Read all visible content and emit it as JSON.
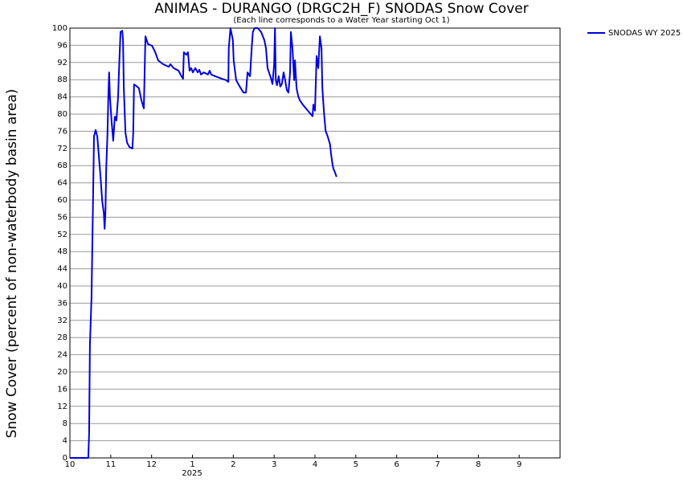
{
  "chart_data": {
    "type": "line",
    "title": "ANIMAS - DURANGO (DRGC2H_F) SNODAS Snow Cover",
    "subtitle": "(Each line corresponds to a Water Year starting Oct 1)",
    "y_label": "Snow Cover (percent of non-waterbody basin area)",
    "year_label": "2025",
    "xlim": [
      0,
      12
    ],
    "xticks": [
      {
        "value": 0,
        "label": "10"
      },
      {
        "value": 1,
        "label": "11"
      },
      {
        "value": 2,
        "label": "12"
      },
      {
        "value": 3,
        "label": "1"
      },
      {
        "value": 4,
        "label": "2"
      },
      {
        "value": 5,
        "label": "3"
      },
      {
        "value": 6,
        "label": "4"
      },
      {
        "value": 7,
        "label": "5"
      },
      {
        "value": 8,
        "label": "6"
      },
      {
        "value": 9,
        "label": "7"
      },
      {
        "value": 10,
        "label": "8"
      },
      {
        "value": 11,
        "label": "9"
      }
    ],
    "ylim": [
      0,
      100
    ],
    "yticks": [
      0,
      4,
      8,
      12,
      16,
      20,
      24,
      28,
      32,
      36,
      40,
      44,
      48,
      52,
      56,
      60,
      64,
      68,
      72,
      76,
      80,
      84,
      88,
      92,
      96,
      100
    ],
    "grid": true,
    "legend": "top-right",
    "series": [
      {
        "name": "SNODAS WY 2025",
        "color": "#0000dd",
        "x": [
          0,
          0.45,
          0.47,
          0.49,
          0.53,
          0.55,
          0.57,
          0.59,
          0.63,
          0.67,
          0.71,
          0.75,
          0.79,
          0.83,
          0.85,
          0.87,
          0.89,
          0.92,
          0.94,
          0.96,
          0.98,
          1.02,
          1.06,
          1.1,
          1.14,
          1.18,
          1.2,
          1.24,
          1.28,
          1.3,
          1.32,
          1.36,
          1.4,
          1.46,
          1.53,
          1.55,
          1.57,
          1.63,
          1.69,
          1.75,
          1.81,
          1.85,
          1.91,
          2.01,
          2.09,
          2.16,
          2.28,
          2.42,
          2.46,
          2.54,
          2.66,
          2.73,
          2.77,
          2.79,
          2.85,
          2.89,
          2.93,
          2.97,
          3.01,
          3.07,
          3.13,
          3.17,
          3.21,
          3.28,
          3.38,
          3.42,
          3.46,
          3.56,
          3.72,
          3.82,
          3.88,
          3.89,
          3.93,
          3.99,
          4.01,
          4.07,
          4.15,
          4.25,
          4.31,
          4.35,
          4.41,
          4.45,
          4.48,
          4.52,
          4.6,
          4.68,
          4.76,
          4.8,
          4.84,
          4.92,
          4.96,
          5.0,
          5.02,
          5.04,
          5.07,
          5.11,
          5.15,
          5.19,
          5.23,
          5.27,
          5.31,
          5.35,
          5.39,
          5.41,
          5.45,
          5.49,
          5.51,
          5.55,
          5.59,
          5.63,
          5.7,
          5.78,
          5.86,
          5.94,
          5.96,
          6.0,
          6.04,
          6.08,
          6.12,
          6.16,
          6.18,
          6.22,
          6.26,
          6.31,
          6.37,
          6.39,
          6.43,
          6.45,
          6.49,
          6.53
        ],
        "values": [
          0,
          0,
          5.6,
          26.2,
          37.4,
          50.5,
          62.6,
          74.8,
          76.3,
          74.8,
          70.1,
          65.4,
          59.8,
          57.0,
          53.3,
          57.0,
          67.3,
          75.7,
          84.1,
          89.7,
          84.1,
          78.5,
          73.8,
          79.4,
          78.5,
          84.1,
          89.7,
          99.1,
          99.4,
          97.2,
          86.0,
          75.7,
          73.3,
          72.3,
          72.0,
          75.7,
          86.9,
          86.5,
          86.0,
          83.2,
          81.3,
          98.1,
          96.3,
          95.9,
          94.4,
          92.5,
          91.6,
          91.0,
          91.6,
          90.7,
          90.1,
          88.8,
          88.2,
          94.4,
          93.8,
          94.4,
          90.1,
          90.7,
          89.7,
          90.7,
          89.7,
          90.3,
          89.2,
          89.7,
          89.2,
          90.1,
          89.2,
          88.8,
          88.2,
          87.9,
          87.5,
          95.3,
          100,
          97.2,
          92.5,
          87.9,
          86.5,
          85.0,
          85.0,
          89.7,
          88.8,
          95.3,
          99.1,
          100,
          100,
          99.1,
          97.2,
          95.3,
          90.7,
          88.4,
          87.0,
          91.6,
          100,
          87.9,
          86.7,
          88.8,
          86.4,
          87.0,
          89.7,
          87.9,
          85.6,
          85.0,
          89.7,
          99.1,
          95.3,
          87.9,
          92.5,
          86.0,
          84.1,
          83.2,
          82.2,
          81.3,
          80.4,
          79.5,
          82.2,
          80.8,
          93.5,
          90.7,
          98.1,
          95.3,
          86.0,
          80.4,
          76.1,
          74.8,
          72.9,
          71.0,
          68.2,
          67.3,
          66.4,
          65.4
        ]
      }
    ]
  }
}
